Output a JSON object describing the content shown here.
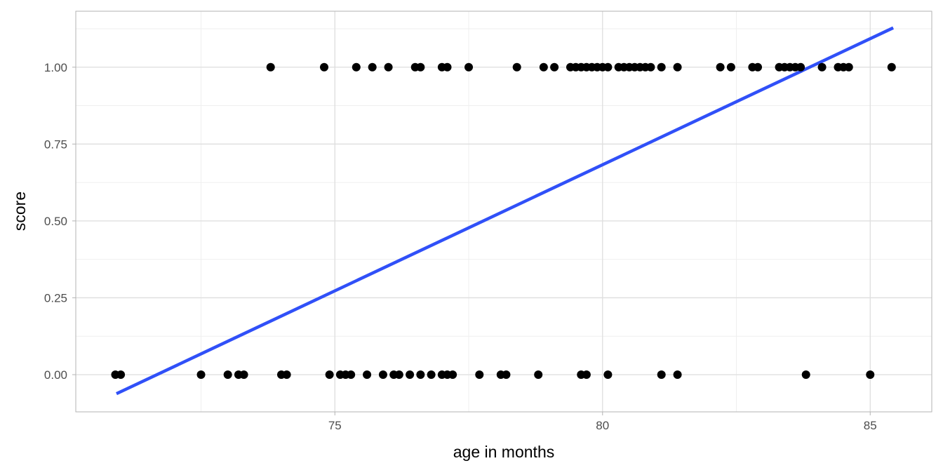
{
  "chart_data": {
    "type": "scatter",
    "title": "",
    "xlabel": "age in months",
    "ylabel": "score",
    "xlim": [
      70.16,
      86.15
    ],
    "ylim": [
      -0.121,
      1.182
    ],
    "x_ticks": [
      75,
      80,
      85
    ],
    "x_tick_labels": [
      "75",
      "80",
      "85"
    ],
    "y_ticks": [
      0,
      0.25,
      0.5,
      0.75,
      1
    ],
    "y_tick_labels": [
      "0.00",
      "0.25",
      "0.50",
      "0.75",
      "1.00"
    ],
    "grid": true,
    "points_score_1": [
      73.8,
      74.8,
      75.4,
      75.7,
      76.0,
      76.5,
      76.6,
      77.0,
      77.1,
      77.5,
      78.4,
      78.9,
      79.1,
      79.4,
      79.5,
      79.6,
      79.7,
      79.8,
      79.9,
      80.0,
      80.1,
      80.3,
      80.4,
      80.5,
      80.6,
      80.7,
      80.8,
      80.9,
      81.1,
      81.4,
      82.2,
      82.4,
      82.8,
      82.9,
      83.3,
      83.4,
      83.5,
      83.6,
      83.7,
      84.1,
      84.4,
      84.5,
      84.6,
      85.4
    ],
    "points_score_0": [
      70.9,
      71.0,
      72.5,
      73.0,
      73.2,
      73.3,
      74.0,
      74.1,
      74.9,
      75.1,
      75.2,
      75.3,
      75.6,
      75.9,
      76.1,
      76.2,
      76.4,
      76.6,
      76.8,
      77.0,
      77.1,
      77.2,
      77.7,
      78.1,
      78.2,
      78.8,
      79.6,
      79.7,
      80.1,
      81.1,
      81.4,
      83.8,
      85.0
    ],
    "fit_line": {
      "x": [
        70.92,
        85.43
      ],
      "y": [
        -0.062,
        1.128
      ],
      "color": "#3050f8"
    },
    "point_color": "#000000"
  }
}
